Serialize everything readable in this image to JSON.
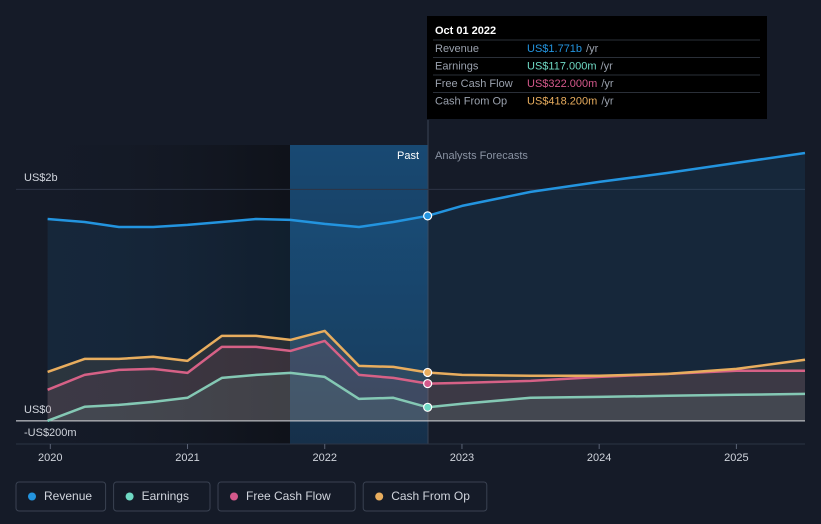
{
  "chart_data": {
    "type": "line",
    "x": [
      2019.98,
      2020.25,
      2020.5,
      2020.75,
      2021,
      2021.25,
      2021.5,
      2021.75,
      2022,
      2022.25,
      2022.5,
      2022.75,
      2023,
      2023.5,
      2024,
      2024.5,
      2025,
      2025.5
    ],
    "series": [
      {
        "name": "Revenue",
        "color": "#2394df",
        "values": [
          1744,
          1718,
          1675,
          1675,
          1693,
          1718,
          1744,
          1736,
          1701,
          1675,
          1718,
          1771,
          1857,
          1978,
          2064,
          2142,
          2228,
          2314
        ]
      },
      {
        "name": "Earnings",
        "color": "#6fd9c4",
        "values": [
          0,
          121,
          138,
          164,
          199,
          371,
          397,
          414,
          380,
          190,
          199,
          117,
          147,
          199,
          207,
          216,
          225,
          233
        ]
      },
      {
        "name": "Free Cash Flow",
        "color": "#d4588b",
        "values": [
          268,
          397,
          440,
          449,
          414,
          639,
          639,
          604,
          691,
          397,
          371,
          322,
          328,
          345,
          380,
          406,
          432,
          432
        ]
      },
      {
        "name": "Cash From Op",
        "color": "#e8ad5e",
        "values": [
          423,
          535,
          535,
          553,
          518,
          734,
          734,
          699,
          777,
          475,
          466,
          418,
          397,
          389,
          389,
          406,
          449,
          527
        ]
      }
    ],
    "xlim": [
      2019.75,
      2025.5
    ],
    "xticks": [
      2020,
      2021,
      2022,
      2023,
      2024,
      2025
    ],
    "ylim": [
      -200,
      2383
    ],
    "yticks": [
      {
        "value": 2000,
        "label": "US$2b"
      },
      {
        "value": 0,
        "label": "US$0"
      },
      {
        "value": -200,
        "label": "-US$200m"
      }
    ],
    "past_label": "Past",
    "forecast_label": "Analysts Forecasts",
    "tooltip": {
      "date": "Oct 01 2022",
      "rows": [
        {
          "label": "Revenue",
          "value": "US$1.771b",
          "unit": "/yr"
        },
        {
          "label": "Earnings",
          "value": "US$117.000m",
          "unit": "/yr"
        },
        {
          "label": "Free Cash Flow",
          "value": "US$322.000m",
          "unit": "/yr"
        },
        {
          "label": "Cash From Op",
          "value": "US$418.200m",
          "unit": "/yr"
        }
      ]
    }
  }
}
